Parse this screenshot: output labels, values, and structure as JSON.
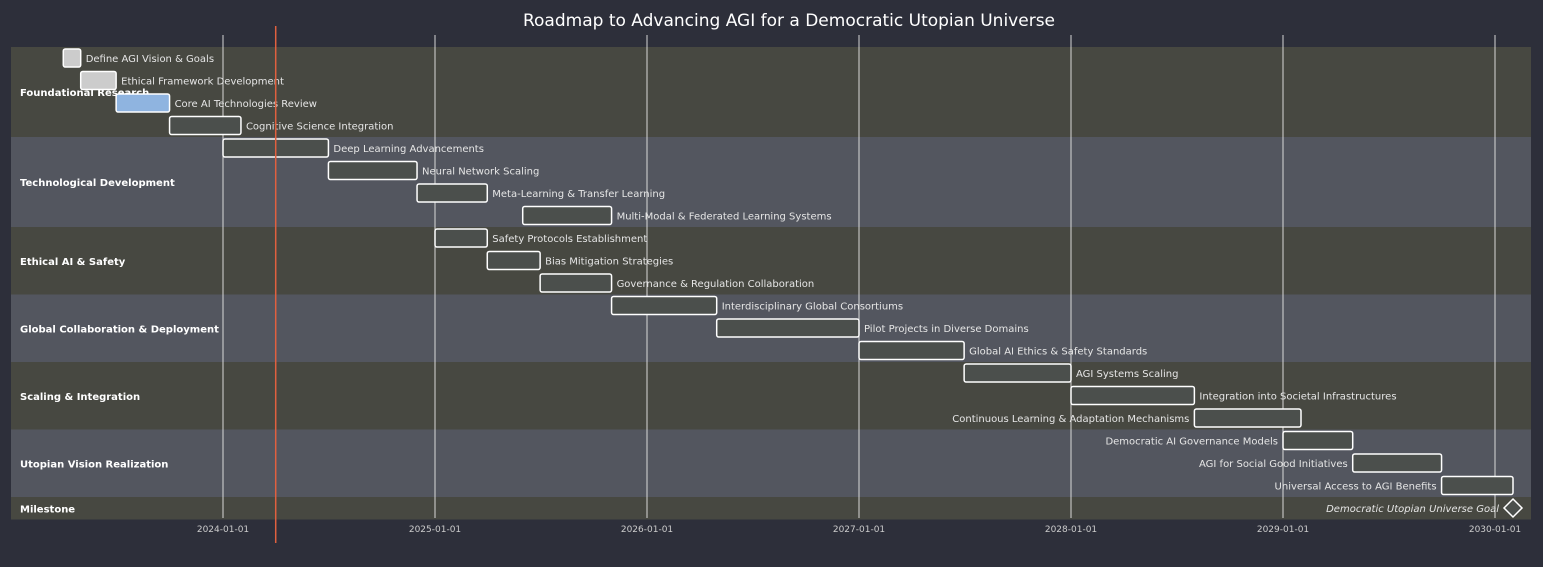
{
  "chart_data": {
    "type": "gantt",
    "title": "Roadmap to Advancing AGI for a Democratic Utopian Universe",
    "x_ticks": [
      "2024-01-01",
      "2025-01-01",
      "2026-01-01",
      "2027-01-01",
      "2028-01-01",
      "2029-01-01",
      "2030-01-01"
    ],
    "xlim": [
      "2023-01-01",
      "2030-01-01"
    ],
    "today": "2024-04-01",
    "colors": {
      "background": "#2d2f3a",
      "section_a": "#474841",
      "section_b": "#53565f",
      "bar_fill": "#4b4f4c",
      "bar_done": "#cccccc",
      "bar_active": "#8fb4e0",
      "bar_stroke": "#ffffff",
      "grid": "#e8e8e8",
      "today_line": "#e0603f"
    },
    "sections": [
      {
        "name": "Foundational Research",
        "tasks": [
          {
            "name": "Define AGI Vision & Goals",
            "start": "2023-04-01",
            "end": "2023-05-01",
            "status": "done"
          },
          {
            "name": "Ethical Framework Development",
            "start": "2023-05-01",
            "end": "2023-07-01",
            "status": "done"
          },
          {
            "name": "Core AI Technologies Review",
            "start": "2023-07-01",
            "end": "2023-10-01",
            "status": "active"
          },
          {
            "name": "Cognitive Science Integration",
            "start": "2023-10-01",
            "end": "2024-02-01",
            "status": ""
          }
        ]
      },
      {
        "name": "Technological Development",
        "tasks": [
          {
            "name": "Deep Learning Advancements",
            "start": "2024-01-01",
            "end": "2024-07-01",
            "status": ""
          },
          {
            "name": "Neural Network Scaling",
            "start": "2024-07-01",
            "end": "2024-12-01",
            "status": ""
          },
          {
            "name": "Meta-Learning & Transfer Learning",
            "start": "2024-12-01",
            "end": "2025-04-01",
            "status": ""
          },
          {
            "name": "Multi-Modal & Federated Learning Systems",
            "start": "2025-06-01",
            "end": "2025-11-01",
            "status": ""
          }
        ]
      },
      {
        "name": "Ethical AI & Safety",
        "tasks": [
          {
            "name": "Safety Protocols Establishment",
            "start": "2025-01-01",
            "end": "2025-04-01",
            "status": ""
          },
          {
            "name": "Bias Mitigation Strategies",
            "start": "2025-04-01",
            "end": "2025-07-01",
            "status": ""
          },
          {
            "name": "Governance & Regulation Collaboration",
            "start": "2025-07-01",
            "end": "2025-11-01",
            "status": ""
          }
        ]
      },
      {
        "name": "Global Collaboration & Deployment",
        "tasks": [
          {
            "name": "Interdisciplinary Global Consortiums",
            "start": "2025-11-01",
            "end": "2026-05-01",
            "status": ""
          },
          {
            "name": "Pilot Projects in Diverse Domains",
            "start": "2026-05-01",
            "end": "2027-01-01",
            "status": ""
          },
          {
            "name": "Global AI Ethics & Safety Standards",
            "start": "2027-01-01",
            "end": "2027-07-01",
            "status": ""
          }
        ]
      },
      {
        "name": "Scaling & Integration",
        "tasks": [
          {
            "name": "AGI Systems Scaling",
            "start": "2027-07-01",
            "end": "2028-01-01",
            "status": ""
          },
          {
            "name": "Integration into Societal Infrastructures",
            "start": "2028-01-01",
            "end": "2028-08-01",
            "status": ""
          },
          {
            "name": "Continuous Learning & Adaptation Mechanisms",
            "start": "2028-08-01",
            "end": "2029-02-01",
            "status": ""
          }
        ]
      },
      {
        "name": "Utopian Vision Realization",
        "tasks": [
          {
            "name": "Democratic AI Governance Models",
            "start": "2029-01-01",
            "end": "2029-05-01",
            "status": ""
          },
          {
            "name": "AGI for Social Good Initiatives",
            "start": "2029-05-01",
            "end": "2029-10-01",
            "status": ""
          },
          {
            "name": "Universal Access to AGI Benefits",
            "start": "2029-10-01",
            "end": "2030-02-01",
            "status": ""
          }
        ]
      },
      {
        "name": "Milestone",
        "tasks": [
          {
            "name": "Democratic Utopian Universe Goal",
            "start": "2030-02-01",
            "end": "2030-02-01",
            "status": "milestone"
          }
        ]
      }
    ]
  }
}
